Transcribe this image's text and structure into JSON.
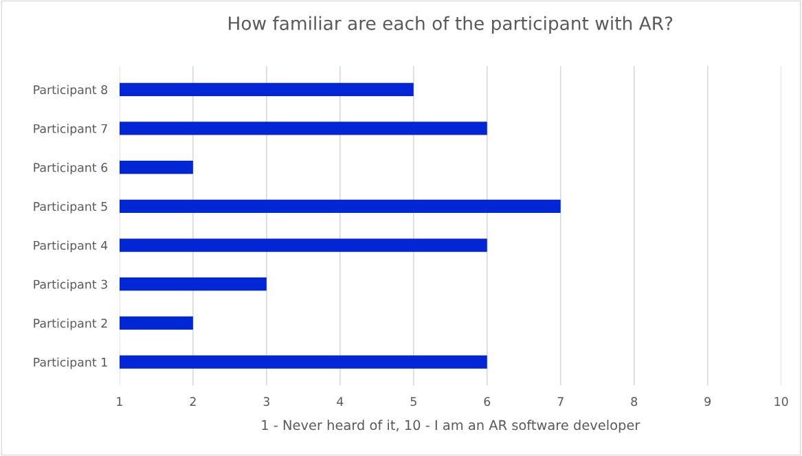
{
  "chart_data": {
    "type": "bar",
    "orientation": "horizontal",
    "title": "How familiar are each of the participant with AR?",
    "xlabel": "1 - Never heard of it, 10 - I am an AR software developer",
    "categories": [
      "Participant 8",
      "Participant 7",
      "Participant 6",
      "Participant 5",
      "Participant 4",
      "Participant 3",
      "Participant 2",
      "Participant 1"
    ],
    "values": [
      5,
      6,
      2,
      7,
      6,
      3,
      2,
      6
    ],
    "color": "#0026d6",
    "xlim": [
      1,
      10
    ],
    "xticks": [
      1,
      2,
      3,
      4,
      5,
      6,
      7,
      8,
      9,
      10
    ],
    "grid": "x"
  }
}
